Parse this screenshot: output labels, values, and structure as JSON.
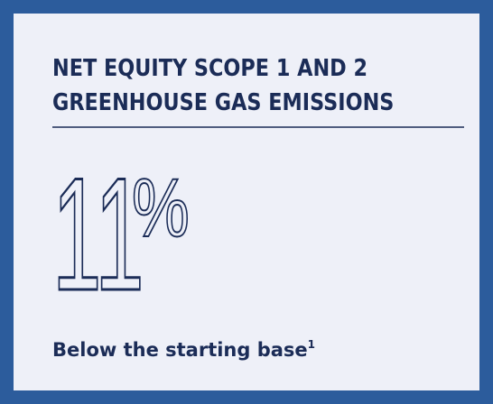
{
  "card": {
    "title_lines": [
      "NET EQUITY SCOPE 1 AND 2",
      "GREENHOUSE GAS EMISSIONS"
    ],
    "stat": {
      "number": "11",
      "unit": "%"
    },
    "caption": "Below the starting base",
    "footnote_ref": "1"
  }
}
